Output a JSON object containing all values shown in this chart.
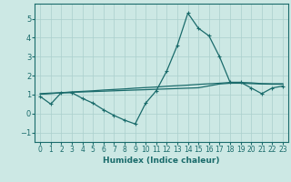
{
  "xlabel": "Humidex (Indice chaleur)",
  "x_values": [
    0,
    1,
    2,
    3,
    4,
    5,
    6,
    7,
    8,
    9,
    10,
    11,
    12,
    13,
    14,
    15,
    16,
    17,
    18,
    19,
    20,
    21,
    22,
    23
  ],
  "line1_y": [
    0.9,
    0.5,
    1.1,
    1.1,
    0.8,
    0.55,
    0.2,
    -0.1,
    -0.35,
    -0.55,
    0.55,
    1.2,
    2.25,
    3.6,
    5.3,
    4.5,
    4.1,
    3.0,
    1.65,
    1.65,
    1.35,
    1.05,
    1.35,
    1.45
  ],
  "line2_y": [
    1.05,
    1.08,
    1.1,
    1.12,
    1.14,
    1.16,
    1.18,
    1.2,
    1.22,
    1.24,
    1.26,
    1.28,
    1.3,
    1.32,
    1.34,
    1.36,
    1.46,
    1.56,
    1.6,
    1.6,
    1.58,
    1.56,
    1.55,
    1.55
  ],
  "line3_y": [
    1.02,
    1.05,
    1.1,
    1.14,
    1.17,
    1.2,
    1.24,
    1.27,
    1.3,
    1.34,
    1.37,
    1.4,
    1.44,
    1.47,
    1.5,
    1.54,
    1.57,
    1.6,
    1.64,
    1.64,
    1.62,
    1.58,
    1.57,
    1.57
  ],
  "line_color": "#1a6b6b",
  "bg_color": "#cce8e4",
  "grid_color": "#aacfcc",
  "ylim": [
    -1.5,
    5.8
  ],
  "yticks": [
    -1,
    0,
    1,
    2,
    3,
    4,
    5
  ],
  "xlim": [
    -0.5,
    23.5
  ],
  "xlabel_fontsize": 6.5,
  "tick_fontsize": 5.5,
  "ytick_fontsize": 6.0
}
